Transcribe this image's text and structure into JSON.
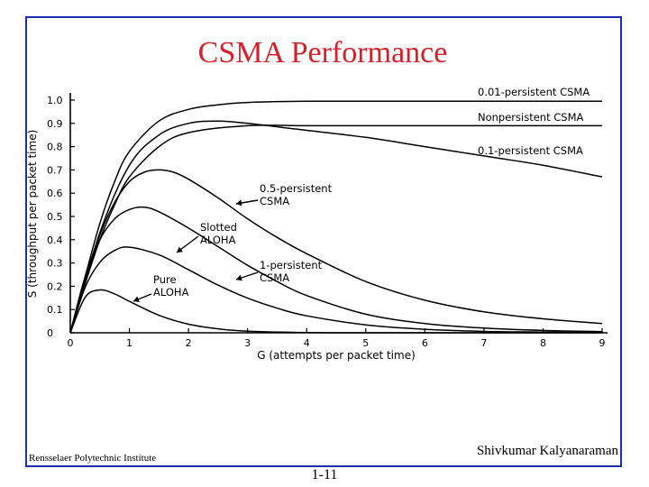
{
  "slide": {
    "title": "CSMA Performance",
    "institution": "Rensselaer Polytechnic Institute",
    "author": "Shivkumar Kalyanaraman",
    "page_number": "1-11"
  },
  "chart_data": {
    "type": "line",
    "xlabel": "G (attempts per packet time)",
    "ylabel": "S (throughput per packet time)",
    "xlim": [
      0,
      9
    ],
    "ylim": [
      0,
      1.0
    ],
    "x_ticks": [
      "0",
      "1",
      "2",
      "3",
      "4",
      "5",
      "6",
      "7",
      "8",
      "9"
    ],
    "y_ticks": [
      "0",
      "0.1",
      "0.2",
      "0.3",
      "0.4",
      "0.5",
      "0.6",
      "0.7",
      "0.8",
      "0.9",
      "1.0"
    ],
    "grid": false,
    "series": [
      {
        "name": "0.01-persistent CSMA",
        "label": "0.01-persistent CSMA",
        "x": [
          0,
          0.25,
          0.5,
          0.75,
          1.0,
          1.5,
          2.0,
          2.5,
          3.0,
          4.0,
          5.0,
          6.0,
          7.0,
          8.0,
          9.0
        ],
        "y": [
          0,
          0.24,
          0.47,
          0.65,
          0.78,
          0.91,
          0.96,
          0.98,
          0.99,
          0.995,
          0.995,
          0.995,
          0.995,
          0.995,
          0.995
        ]
      },
      {
        "name": "Nonpersistent CSMA",
        "label": "Nonpersistent CSMA",
        "x": [
          0,
          0.25,
          0.5,
          0.75,
          1.0,
          1.5,
          2.0,
          3.0,
          4.0,
          5.0,
          6.0,
          7.0,
          8.0,
          9.0
        ],
        "y": [
          0,
          0.21,
          0.4,
          0.55,
          0.67,
          0.8,
          0.86,
          0.89,
          0.89,
          0.89,
          0.89,
          0.89,
          0.89,
          0.89
        ]
      },
      {
        "name": "0.1-persistent CSMA",
        "label": "0.1-persistent CSMA",
        "x": [
          0,
          0.5,
          1.0,
          1.5,
          2.0,
          2.5,
          3.0,
          4.0,
          5.0,
          6.0,
          7.0,
          8.0,
          9.0
        ],
        "y": [
          0,
          0.43,
          0.72,
          0.85,
          0.9,
          0.91,
          0.9,
          0.87,
          0.84,
          0.8,
          0.76,
          0.72,
          0.67
        ]
      },
      {
        "name": "0.5-persistent CSMA",
        "label": "0.5-persistent CSMA",
        "x": [
          0,
          0.25,
          0.5,
          0.75,
          1.0,
          1.25,
          1.5,
          1.75,
          2.0,
          2.5,
          3.0,
          3.5,
          4.0,
          5.0,
          6.0,
          7.0,
          8.0,
          9.0
        ],
        "y": [
          0,
          0.22,
          0.42,
          0.56,
          0.65,
          0.69,
          0.7,
          0.69,
          0.66,
          0.58,
          0.49,
          0.41,
          0.34,
          0.22,
          0.14,
          0.09,
          0.06,
          0.04
        ]
      },
      {
        "name": "Slotted ALOHA",
        "label": "Slotted ALOHA",
        "x": [
          0,
          0.25,
          0.5,
          0.75,
          1.0,
          1.5,
          2.0,
          2.5,
          3.0,
          3.5,
          4.0,
          5.0,
          6.0,
          7.0,
          8.0,
          9.0
        ],
        "y": [
          0,
          0.195,
          0.303,
          0.354,
          0.368,
          0.335,
          0.271,
          0.205,
          0.149,
          0.106,
          0.073,
          0.034,
          0.015,
          0.006,
          0.003,
          0.001
        ]
      },
      {
        "name": "1-persistent CSMA",
        "label": "1-persistent CSMA",
        "x": [
          0,
          0.25,
          0.5,
          0.75,
          1.0,
          1.25,
          1.5,
          2.0,
          2.5,
          3.0,
          3.5,
          4.0,
          5.0,
          6.0,
          7.0,
          8.0,
          9.0
        ],
        "y": [
          0,
          0.24,
          0.4,
          0.49,
          0.53,
          0.54,
          0.52,
          0.45,
          0.37,
          0.29,
          0.22,
          0.16,
          0.08,
          0.04,
          0.02,
          0.01,
          0.005
        ]
      },
      {
        "name": "Pure ALOHA",
        "label": "Pure ALOHA",
        "x": [
          0,
          0.25,
          0.5,
          0.75,
          1.0,
          1.5,
          2.0,
          2.5,
          3.0,
          4.0,
          5.0,
          6.0,
          7.0,
          8.0,
          9.0
        ],
        "y": [
          0,
          0.152,
          0.184,
          0.167,
          0.135,
          0.075,
          0.037,
          0.017,
          0.007,
          0.001,
          0.0,
          0.0,
          0.0,
          0.0,
          0.0
        ]
      }
    ],
    "annotations": [
      {
        "series": "0.01-persistent CSMA",
        "text": "0.01-persistent CSMA"
      },
      {
        "series": "Nonpersistent CSMA",
        "text": "Nonpersistent CSMA"
      },
      {
        "series": "0.1-persistent CSMA",
        "text": "0.1-persistent CSMA"
      },
      {
        "series": "0.5-persistent CSMA",
        "lines": [
          "0.5-persistent",
          "CSMA"
        ]
      },
      {
        "series": "Slotted ALOHA",
        "lines": [
          "Slotted",
          "ALOHA"
        ]
      },
      {
        "series": "1-persistent CSMA",
        "lines": [
          "1-persistent",
          "CSMA"
        ]
      },
      {
        "series": "Pure ALOHA",
        "lines": [
          "Pure",
          "ALOHA"
        ]
      }
    ]
  }
}
